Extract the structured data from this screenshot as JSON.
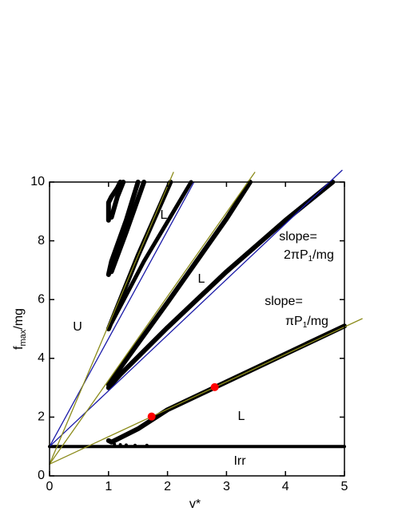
{
  "chart_data": {
    "type": "line",
    "xlabel": "v*",
    "ylabel": {
      "main": "f",
      "sub": "max",
      "rest": "/mg"
    },
    "xlim": [
      0,
      5
    ],
    "xticks": [
      0,
      1,
      2,
      3,
      4,
      5
    ],
    "ylim": [
      0,
      10
    ],
    "yticks": [
      0,
      2,
      4,
      6,
      8,
      10
    ],
    "series": [
      {
        "color": "#000000",
        "width": 6,
        "x": [
          1,
          1.05,
          1.2,
          1.5,
          2,
          3,
          4,
          5
        ],
        "y": [
          1.2,
          1.15,
          1.3,
          1.6,
          2.25,
          3.2,
          4.15,
          5.1
        ]
      },
      {
        "color": "#000000",
        "width": 6,
        "x": [
          1,
          1.2,
          2,
          3,
          4,
          4.8
        ],
        "y": [
          3,
          3.45,
          5.05,
          6.95,
          8.7,
          10
        ]
      },
      {
        "color": "#000000",
        "width": 6,
        "x": [
          1,
          1.1,
          2,
          3,
          3.4
        ],
        "y": [
          3.1,
          3.4,
          5.9,
          8.75,
          10
        ]
      },
      {
        "color": "#000000",
        "width": 6,
        "x": [
          1,
          1.5,
          2.05
        ],
        "y": [
          5,
          7.5,
          10
        ]
      },
      {
        "color": "#000000",
        "width": 5,
        "x": [
          1.05,
          1.6,
          2.4
        ],
        "y": [
          5.2,
          7.3,
          10
        ]
      },
      {
        "color": "#000000",
        "width": 6,
        "x": [
          1,
          1,
          1.05,
          1.15,
          1.2
        ],
        "y": [
          8.7,
          9.3,
          9.5,
          9.8,
          10
        ]
      },
      {
        "color": "#000000",
        "width": 6,
        "x": [
          1.05,
          1.15,
          1.25
        ],
        "y": [
          8.8,
          9.5,
          10
        ]
      },
      {
        "color": "#000000",
        "width": 6,
        "x": [
          1,
          1.05,
          1.3,
          1.5
        ],
        "y": [
          6.85,
          7.3,
          8.7,
          10
        ]
      },
      {
        "color": "#000000",
        "width": 6,
        "x": [
          1.05,
          1.3,
          1.6
        ],
        "y": [
          6.95,
          8.3,
          10
        ]
      },
      {
        "color": "#000000",
        "width": 4,
        "x": [
          0,
          5
        ],
        "y": [
          1,
          1
        ]
      },
      {
        "color": "#1a1aa8",
        "width": 1.3,
        "x": [
          0,
          4.96
        ],
        "y": [
          1,
          10.4
        ]
      },
      {
        "color": "#1a1aa8",
        "width": 1.3,
        "x": [
          0,
          2.45
        ],
        "y": [
          1,
          10
        ]
      },
      {
        "color": "#8b8b1a",
        "width": 1.3,
        "x": [
          0,
          5.3
        ],
        "y": [
          0.4,
          5.35
        ]
      },
      {
        "color": "#8b8b1a",
        "width": 1.3,
        "x": [
          0,
          3.48
        ],
        "y": [
          0.4,
          10.33
        ]
      },
      {
        "color": "#8b8b1a",
        "width": 1.3,
        "x": [
          0,
          2.1
        ],
        "y": [
          0.4,
          10.33
        ]
      },
      {
        "color": "#000000",
        "width": 0,
        "markers": true,
        "radius": 2,
        "x": [
          1.1,
          1.2,
          1.3,
          1.45,
          1.65
        ],
        "y": [
          1.08,
          1.06,
          1.05,
          1.04,
          1.04
        ]
      },
      {
        "color": "#ff0000",
        "width": 0,
        "markers": true,
        "radius": 5,
        "x": [
          1.73,
          2.8
        ],
        "y": [
          2.02,
          3.02
        ]
      }
    ],
    "annotations": [
      {
        "text": "L"
      },
      {
        "text": "L"
      },
      {
        "text": "L"
      },
      {
        "text": "U"
      },
      {
        "text": "Irr"
      },
      {
        "text": "slope="
      },
      {
        "parts": [
          "2πP",
          "1",
          "/mg"
        ]
      },
      {
        "text": "slope="
      },
      {
        "parts": [
          "πP",
          "1",
          "/mg"
        ]
      }
    ]
  }
}
